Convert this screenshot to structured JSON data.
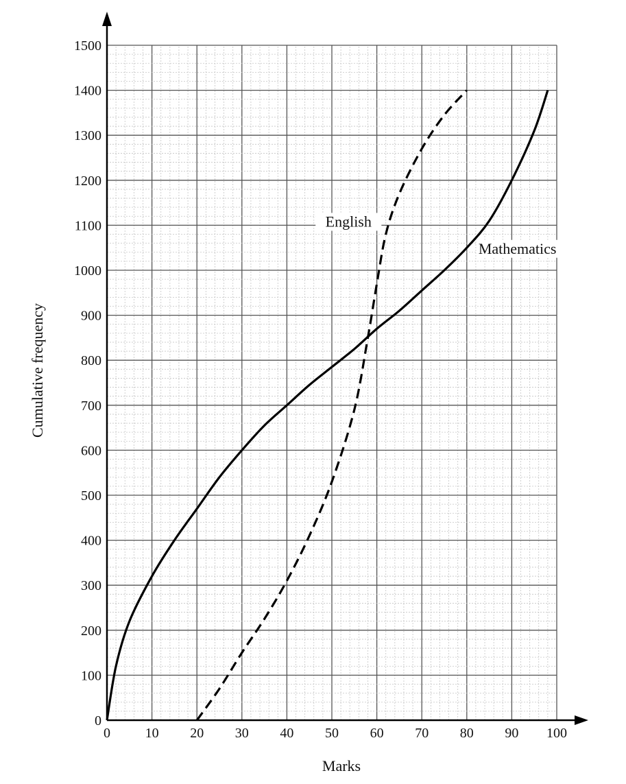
{
  "chart_data": {
    "type": "line",
    "xlabel": "Marks",
    "ylabel": "Cumulative frequency",
    "xlim": [
      0,
      100
    ],
    "ylim": [
      0,
      1500
    ],
    "x_ticks": [
      "0",
      "10",
      "20",
      "30",
      "40",
      "50",
      "60",
      "70",
      "80",
      "90",
      "100"
    ],
    "y_ticks": [
      "0",
      "100",
      "200",
      "300",
      "400",
      "500",
      "600",
      "700",
      "800",
      "900",
      "1000",
      "1100",
      "1200",
      "1300",
      "1400",
      "1500"
    ],
    "grid": true,
    "series": [
      {
        "name": "Mathematics",
        "line_style": "solid",
        "x": [
          0,
          2,
          5,
          10,
          15,
          20,
          25,
          30,
          35,
          40,
          45,
          50,
          55,
          60,
          65,
          70,
          75,
          80,
          85,
          90,
          95,
          98
        ],
        "y": [
          0,
          120,
          220,
          320,
          400,
          470,
          540,
          600,
          655,
          700,
          745,
          785,
          825,
          870,
          910,
          955,
          1000,
          1050,
          1110,
          1200,
          1310,
          1400
        ]
      },
      {
        "name": "English",
        "line_style": "dashed",
        "x": [
          20,
          25,
          30,
          35,
          40,
          45,
          50,
          55,
          58,
          60,
          62,
          65,
          70,
          75,
          80
        ],
        "y": [
          0,
          70,
          150,
          225,
          310,
          410,
          530,
          690,
          850,
          970,
          1080,
          1170,
          1270,
          1345,
          1400
        ]
      }
    ]
  }
}
